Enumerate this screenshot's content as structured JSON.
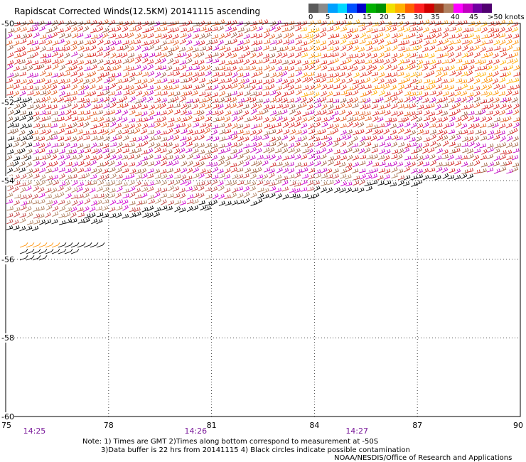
{
  "title": "Rapidscat Corrected Winds(12.5KM) 20141115 ascending",
  "legend": {
    "colors": [
      "#5a5a5a",
      "#8a8a8a",
      "#00a0ff",
      "#00d8ff",
      "#0050ff",
      "#0000c8",
      "#00b000",
      "#009000",
      "#f0e000",
      "#ffb000",
      "#ff6000",
      "#ff2020",
      "#d00000",
      "#9a4020",
      "#b08060",
      "#ff00ff",
      "#c000c0",
      "#7000a0",
      "#500070"
    ],
    "labels": [
      "0",
      "5",
      "10",
      "15",
      "20",
      "25",
      "30",
      "35",
      "40",
      "45",
      ">50 knots"
    ]
  },
  "map": {
    "lon_range": [
      75,
      90
    ],
    "lat_range": [
      -60,
      -50
    ],
    "lon_ticks": [
      "75",
      "78",
      "81",
      "84",
      "87",
      "90"
    ],
    "lat_ticks": [
      "-50",
      "-52",
      "-54",
      "-56",
      "-58",
      "-60"
    ],
    "time_labels": [
      {
        "text": "14:25",
        "lon": 75.8
      },
      {
        "text": "14:26",
        "lon": 80.5
      },
      {
        "text": "14:27",
        "lon": 85.2
      }
    ]
  },
  "notes": {
    "line1": "Note: 1) Times are GMT 2)Times along bottom correspond to measurement at -50S",
    "line2": "3)Data buffer is 22 hrs from 20141115 4) Black circles indicate possible contamination",
    "credit": "NOAA/NESDIS/Office of Research and Applications"
  }
}
